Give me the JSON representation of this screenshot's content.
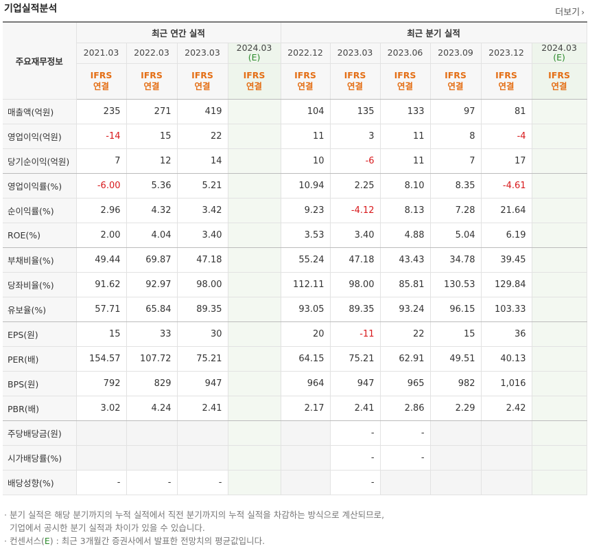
{
  "header": {
    "title": "기업실적분석",
    "more_label": "더보기"
  },
  "table": {
    "row_header": "주요재무정보",
    "groups": {
      "annual": "최근 연간 실적",
      "quarterly": "최근 분기 실적"
    },
    "periods": [
      {
        "date": "2021.03",
        "est": ""
      },
      {
        "date": "2022.03",
        "est": ""
      },
      {
        "date": "2023.03",
        "est": ""
      },
      {
        "date": "2024.03",
        "est": "(E)"
      },
      {
        "date": "2022.12",
        "est": ""
      },
      {
        "date": "2023.03",
        "est": ""
      },
      {
        "date": "2023.06",
        "est": ""
      },
      {
        "date": "2023.09",
        "est": ""
      },
      {
        "date": "2023.12",
        "est": ""
      },
      {
        "date": "2024.03",
        "est": "(E)"
      }
    ],
    "ifrs": {
      "line1": "IFRS",
      "line2": "연결"
    },
    "rows": [
      {
        "label": "매출액(억원)",
        "values": [
          "235",
          "271",
          "419",
          "",
          "104",
          "135",
          "133",
          "97",
          "81",
          ""
        ]
      },
      {
        "label": "영업이익(억원)",
        "values": [
          "-14",
          "15",
          "22",
          "",
          "11",
          "3",
          "11",
          "8",
          "-4",
          ""
        ]
      },
      {
        "label": "당기순이익(억원)",
        "values": [
          "7",
          "12",
          "14",
          "",
          "10",
          "-6",
          "11",
          "7",
          "17",
          ""
        ]
      },
      {
        "label": "영업이익률(%)",
        "values": [
          "-6.00",
          "5.36",
          "5.21",
          "",
          "10.94",
          "2.25",
          "8.10",
          "8.35",
          "-4.61",
          ""
        ]
      },
      {
        "label": "순이익률(%)",
        "values": [
          "2.96",
          "4.32",
          "3.42",
          "",
          "9.23",
          "-4.12",
          "8.13",
          "7.28",
          "21.64",
          ""
        ]
      },
      {
        "label": "ROE(%)",
        "values": [
          "2.00",
          "4.04",
          "3.40",
          "",
          "3.53",
          "3.40",
          "4.88",
          "5.04",
          "6.19",
          ""
        ]
      },
      {
        "label": "부채비율(%)",
        "values": [
          "49.44",
          "69.87",
          "47.18",
          "",
          "55.24",
          "47.18",
          "43.43",
          "34.78",
          "39.45",
          ""
        ]
      },
      {
        "label": "당좌비율(%)",
        "values": [
          "91.62",
          "92.97",
          "98.00",
          "",
          "112.11",
          "98.00",
          "85.81",
          "130.53",
          "129.84",
          ""
        ]
      },
      {
        "label": "유보율(%)",
        "values": [
          "57.71",
          "65.84",
          "89.35",
          "",
          "93.05",
          "89.35",
          "93.24",
          "96.15",
          "103.33",
          ""
        ]
      },
      {
        "label": "EPS(원)",
        "values": [
          "15",
          "33",
          "30",
          "",
          "20",
          "-11",
          "22",
          "15",
          "36",
          ""
        ]
      },
      {
        "label": "PER(배)",
        "values": [
          "154.57",
          "107.72",
          "75.21",
          "",
          "64.15",
          "75.21",
          "62.91",
          "49.51",
          "40.13",
          ""
        ]
      },
      {
        "label": "BPS(원)",
        "values": [
          "792",
          "829",
          "947",
          "",
          "964",
          "947",
          "965",
          "982",
          "1,016",
          ""
        ]
      },
      {
        "label": "PBR(배)",
        "values": [
          "3.02",
          "4.24",
          "2.41",
          "",
          "2.17",
          "2.41",
          "2.86",
          "2.29",
          "2.42",
          ""
        ]
      },
      {
        "label": "주당배당금(원)",
        "values": [
          "",
          "",
          "",
          "",
          "",
          "-",
          "-",
          "",
          "",
          ""
        ]
      },
      {
        "label": "시가배당률(%)",
        "values": [
          "",
          "",
          "",
          "",
          "",
          "-",
          "-",
          "",
          "",
          ""
        ]
      },
      {
        "label": "배당성향(%)",
        "values": [
          "-",
          "-",
          "-",
          "",
          "",
          "-",
          "",
          "",
          "",
          ""
        ]
      }
    ]
  },
  "notes": {
    "line1": "분기 실적은 해당 분기까지의 누적 실적에서 직전 분기까지의 누적 실적을 차감하는 방식으로 계산되므로,",
    "line2": "기업에서 공시한 분기 실적과 차이가 있을 수 있습니다.",
    "line3_prefix": "컨센서스(",
    "line3_mark": "E",
    "line3_suffix": ") : 최근 3개월간 증권사에서 발표한 전망치의 평균값입니다."
  },
  "colors": {
    "negative": "#d8181b",
    "ifrs": "#e46f16",
    "estimate": "#2a8a2a"
  }
}
